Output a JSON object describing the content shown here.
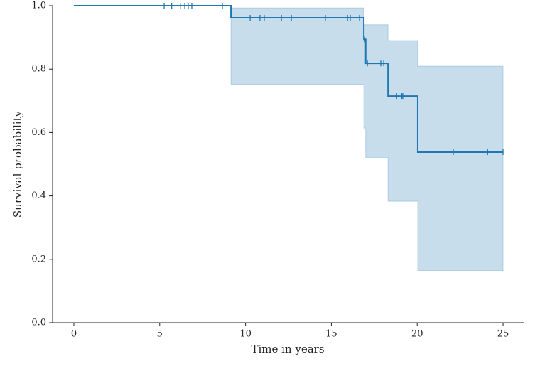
{
  "chart_data": {
    "type": "step",
    "xlabel": "Time in years",
    "ylabel": "Survival probability",
    "color": "#1f77b4",
    "x": [
      0,
      9.15,
      16.89,
      17.0,
      18.3,
      20.03,
      25
    ],
    "values": [
      1.0,
      0.962,
      0.894,
      0.818,
      0.715,
      0.538,
      0.538
    ],
    "ci_upper": [
      1.0,
      0.993,
      0.94,
      0.94,
      0.89,
      0.809,
      0.809
    ],
    "ci_lower": [
      1.0,
      0.751,
      0.614,
      0.52,
      0.383,
      0.164,
      0.164
    ],
    "censor_x": [
      5.26,
      5.7,
      6.2,
      6.46,
      6.66,
      6.87,
      8.65,
      10.27,
      10.84,
      11.09,
      12.09,
      12.67,
      14.65,
      15.94,
      16.1,
      16.64,
      16.93,
      17.1,
      17.88,
      18.05,
      18.8,
      19.1,
      19.16,
      22.1,
      24.1,
      25
    ],
    "censor_values": [
      1.0,
      1.0,
      1.0,
      1.0,
      1.0,
      1.0,
      1.0,
      0.962,
      0.962,
      0.962,
      0.962,
      0.962,
      0.962,
      0.962,
      0.962,
      0.962,
      0.894,
      0.818,
      0.818,
      0.818,
      0.715,
      0.715,
      0.715,
      0.538,
      0.538,
      0.538
    ],
    "xlim": [
      -1.24,
      26.24
    ],
    "ylim": [
      0,
      1.0
    ],
    "xticks": [
      0,
      5,
      10,
      15,
      20,
      25
    ],
    "yticks": [
      {
        "value": 0,
        "label": "0.0"
      },
      {
        "value": 0.2,
        "label": "0.2"
      },
      {
        "value": 0.4,
        "label": "0.4"
      },
      {
        "value": 0.6,
        "label": "0.6"
      },
      {
        "value": 0.8,
        "label": "0.8"
      },
      {
        "value": 1.0,
        "label": "1.0"
      }
    ]
  }
}
